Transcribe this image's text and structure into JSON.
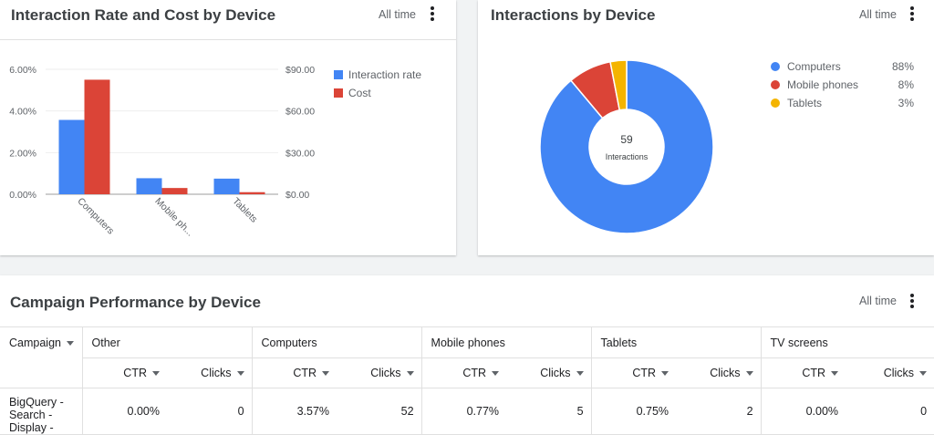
{
  "left_card": {
    "title": "Interaction Rate and Cost by Device",
    "range": "All time",
    "chart_data": {
      "type": "bar",
      "categories": [
        "Computers",
        "Mobile phones",
        "Tablets"
      ],
      "category_labels": [
        "Computers",
        "Mobile ph...",
        "Tablets"
      ],
      "series": [
        {
          "name": "Interaction rate",
          "values": [
            3.57,
            0.77,
            0.75
          ],
          "axis": "left",
          "color": "#4285f4"
        },
        {
          "name": "Cost",
          "values": [
            82.5,
            4.5,
            1.5
          ],
          "axis": "right",
          "color": "#db4437"
        }
      ],
      "left_ticks": [
        "0.00%",
        "2.00%",
        "4.00%",
        "6.00%"
      ],
      "left_range": [
        0,
        6
      ],
      "right_ticks": [
        "$0.00",
        "$30.00",
        "$60.00",
        "$90.00"
      ],
      "right_range": [
        0,
        90
      ],
      "legend_position": "right"
    }
  },
  "right_card": {
    "title": "Interactions by Device",
    "range": "All time",
    "center_value": "59",
    "center_label": "Interactions",
    "chart_data": {
      "type": "pie",
      "labels": [
        "Computers",
        "Mobile phones",
        "Tablets"
      ],
      "values": [
        88,
        8,
        3
      ],
      "value_labels": [
        "88%",
        "8%",
        "3%"
      ],
      "colors": [
        "#4285f4",
        "#db4437",
        "#f4b400"
      ],
      "legend_position": "right"
    }
  },
  "table_card": {
    "title": "Campaign Performance by Device",
    "range": "All time",
    "campaign_header": "Campaign",
    "groups": [
      "Other",
      "Computers",
      "Mobile phones",
      "Tablets",
      "TV screens"
    ],
    "sub_headers": {
      "ctr": "CTR",
      "clicks": "Clicks"
    },
    "rows": [
      {
        "campaign": [
          "BigQuery -",
          "Search -",
          "Display -"
        ],
        "values": [
          "0.00%",
          "0",
          "3.57%",
          "52",
          "0.77%",
          "5",
          "0.75%",
          "2",
          "0.00%",
          "0"
        ]
      }
    ]
  }
}
